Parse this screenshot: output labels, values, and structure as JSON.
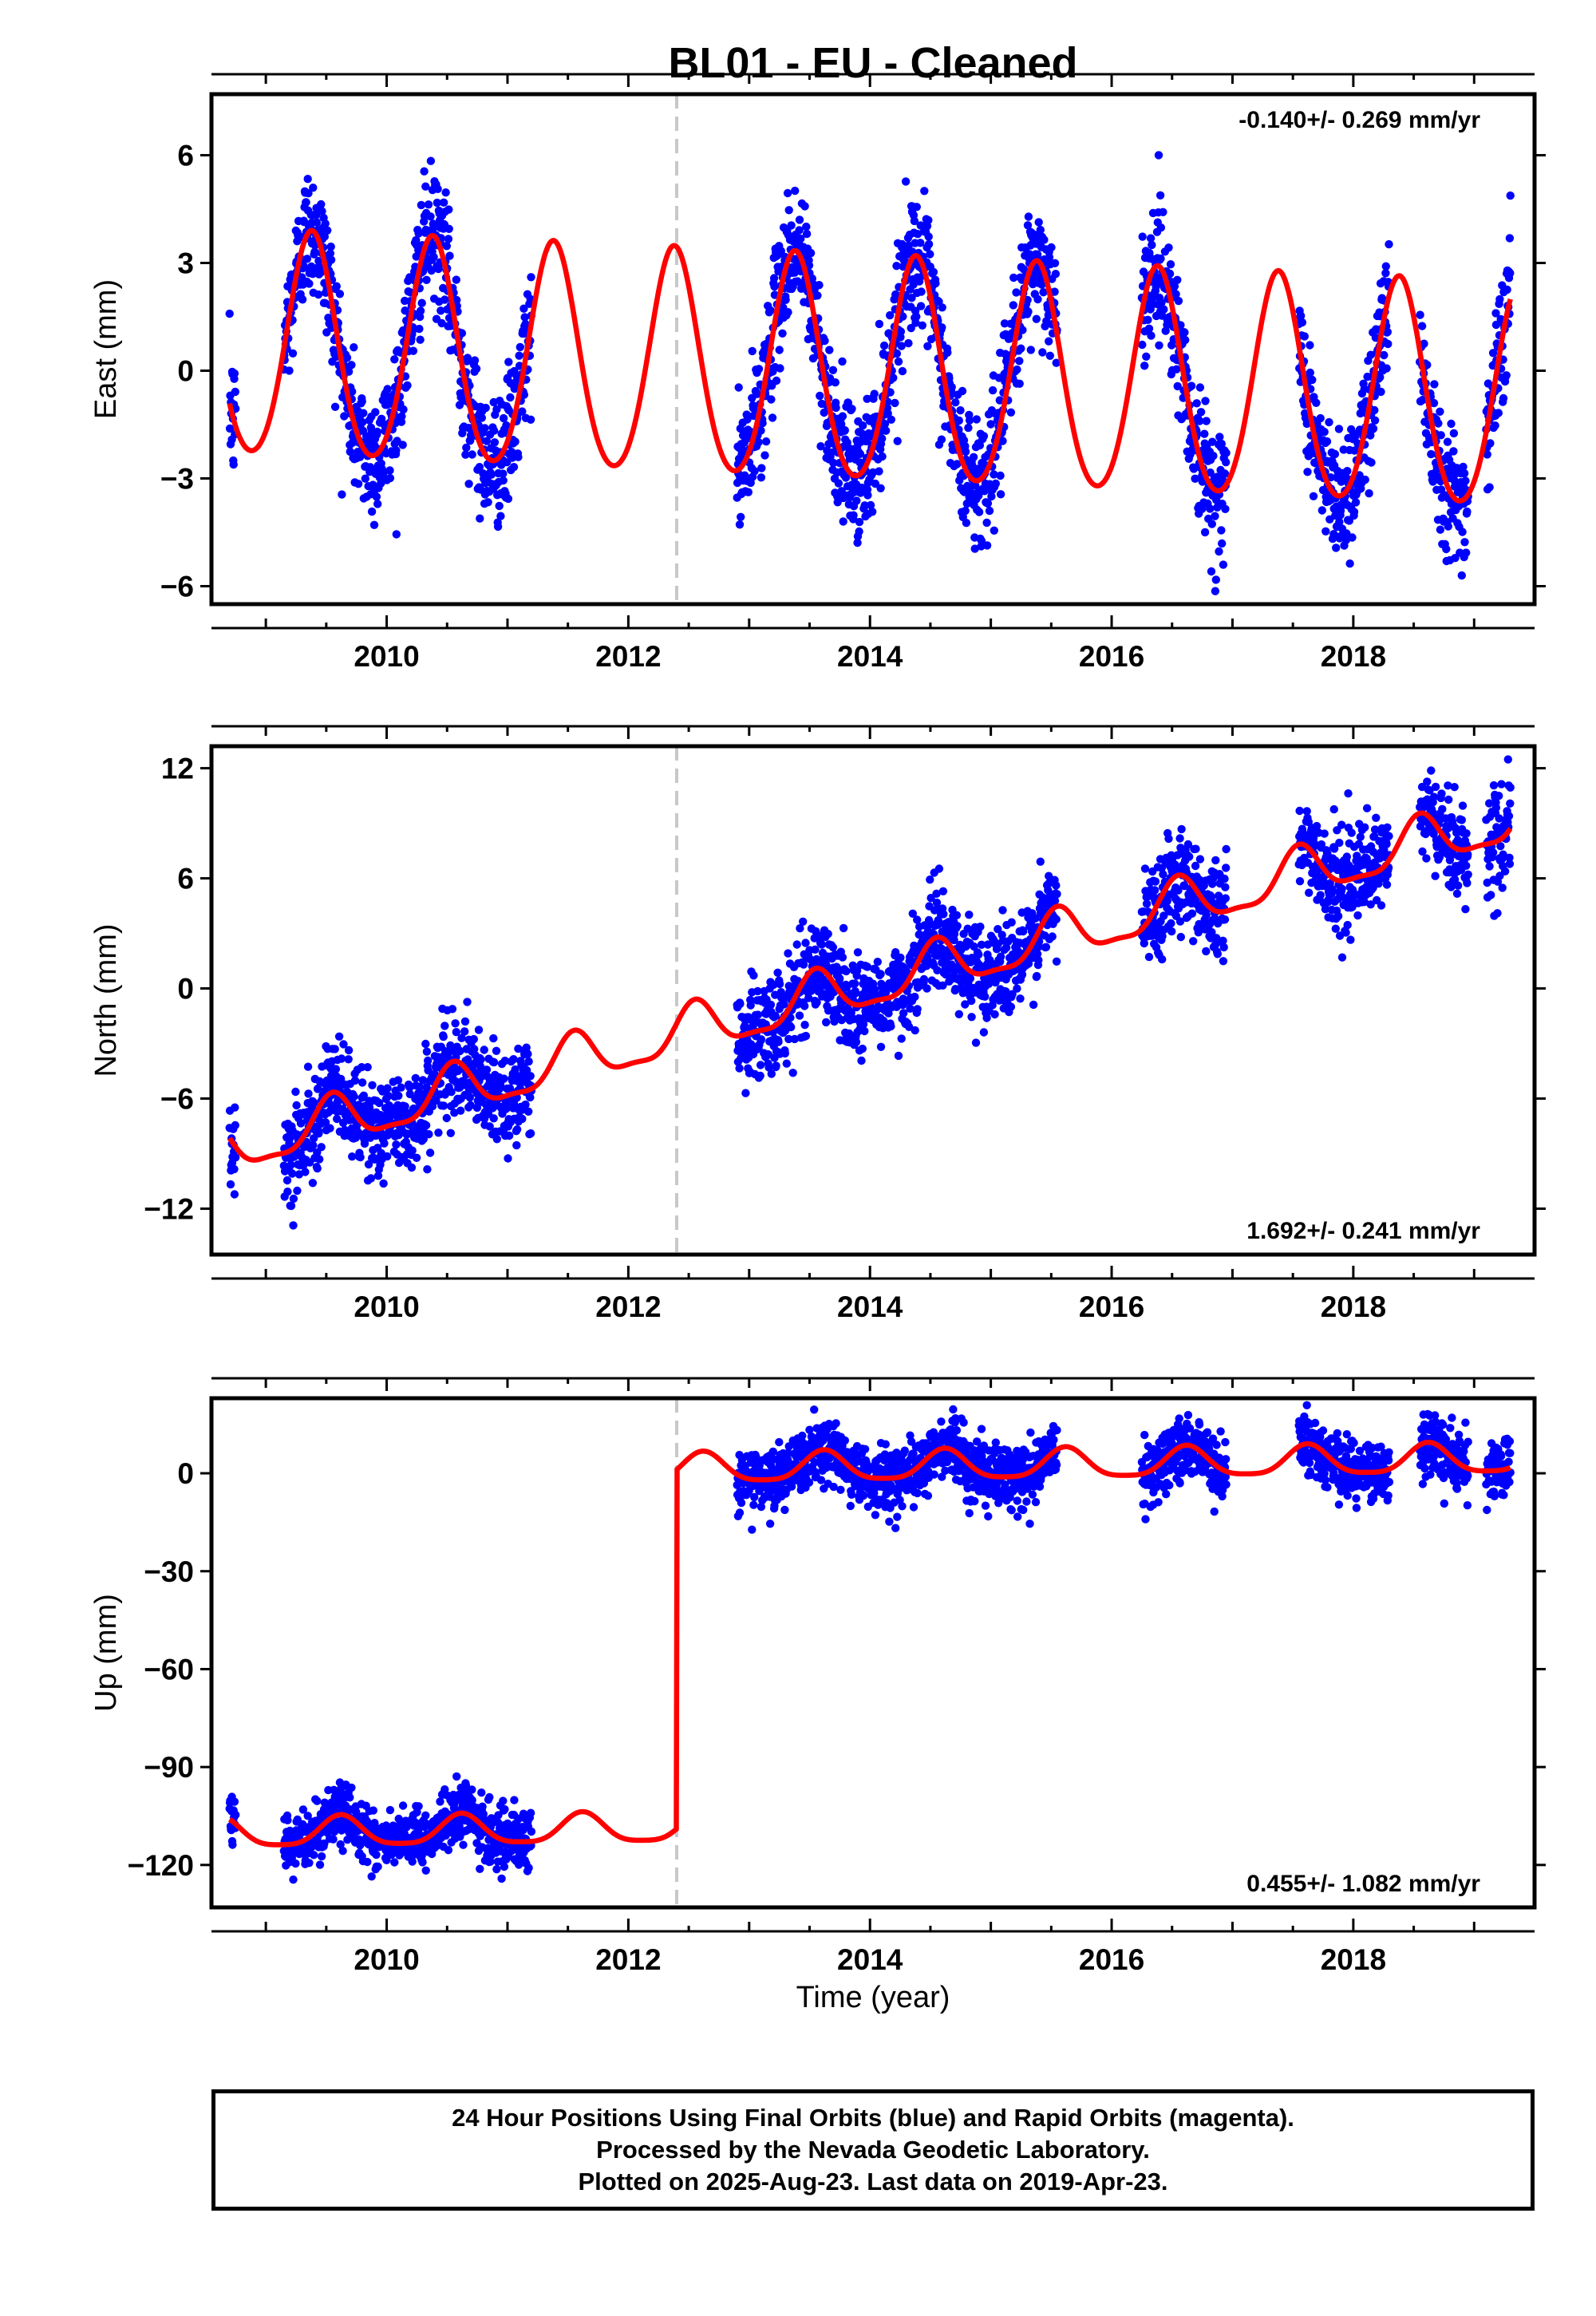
{
  "title": "BL01  - EU - Cleaned",
  "x_axis_title": "Time (year)",
  "footer": {
    "line1": "24 Hour Positions Using Final Orbits (blue) and Rapid Orbits (magenta).",
    "line2": "Processed by the Nevada Geodetic Laboratory.",
    "line3": "Plotted on 2025-Aug-23. Last data on 2019-Apr-23."
  },
  "colors": {
    "points": "#0000ff",
    "model": "#ff0000",
    "step_line": "#c8c8c8",
    "frame": "#000000"
  },
  "chart_data": [
    {
      "type": "scatter",
      "name": "east",
      "ylabel": "East (mm)",
      "rate_label": "-0.140+/- 0.269 mm/yr",
      "rate_position": "top-right",
      "xlim": [
        2008.55,
        2019.5
      ],
      "ylim": [
        -6.5,
        7.7
      ],
      "xticks": [
        2010,
        2012,
        2014,
        2016,
        2018
      ],
      "yticks": [
        6,
        3,
        0,
        -3,
        -6
      ],
      "ytick_labels": [
        "6",
        "3",
        "0",
        "−3",
        "−6"
      ],
      "step_epoch": 2012.4,
      "data_segments": [
        [
          2008.7,
          2008.75
        ],
        [
          2009.15,
          2011.2
        ],
        [
          2012.9,
          2015.55
        ],
        [
          2016.25,
          2016.95
        ],
        [
          2017.55,
          2018.3
        ],
        [
          2018.55,
          2018.95
        ],
        [
          2019.1,
          2019.3
        ]
      ],
      "model": {
        "x_start": 2008.7,
        "x_end": 2019.3,
        "offset": 0.6,
        "rate": -0.14,
        "annual_amplitude": 3.1,
        "annual_phase_peak": 2009.38,
        "semiannual_amplitude": 0.3,
        "step": 0.0
      },
      "noise_sigma": 0.9
    },
    {
      "type": "scatter",
      "name": "north",
      "ylabel": "North (mm)",
      "rate_label": "1.692+/- 0.241 mm/yr",
      "rate_position": "bottom-right",
      "xlim": [
        2008.55,
        2019.5
      ],
      "ylim": [
        -14.5,
        13.2
      ],
      "xticks": [
        2010,
        2012,
        2014,
        2016,
        2018
      ],
      "yticks": [
        12,
        6,
        0,
        -6,
        -12
      ],
      "ytick_labels": [
        "12",
        "6",
        "0",
        "−6",
        "−12"
      ],
      "step_epoch": 2012.4,
      "data_segments": [
        [
          2008.7,
          2008.75
        ],
        [
          2009.15,
          2011.2
        ],
        [
          2012.9,
          2015.55
        ],
        [
          2016.25,
          2016.95
        ],
        [
          2017.55,
          2018.3
        ],
        [
          2018.55,
          2018.95
        ],
        [
          2019.1,
          2019.3
        ]
      ],
      "model": {
        "x_start": 2008.7,
        "x_end": 2019.3,
        "offset": -8.8,
        "rate": 1.69,
        "annual_amplitude": 1.3,
        "annual_phase_peak": 2009.55,
        "semiannual_amplitude": 0.4,
        "step": 0.0
      },
      "noise_sigma": 1.3
    },
    {
      "type": "scatter",
      "name": "up",
      "ylabel": "Up (mm)",
      "rate_label": "0.455+/- 1.082 mm/yr",
      "rate_position": "bottom-right",
      "xlim": [
        2008.55,
        2019.5
      ],
      "ylim": [
        -133,
        23
      ],
      "xticks": [
        2010,
        2012,
        2014,
        2016,
        2018
      ],
      "yticks": [
        0,
        -30,
        -60,
        -90,
        -120
      ],
      "ytick_labels": [
        "0",
        "−30",
        "−60",
        "−90",
        "−120"
      ],
      "step_epoch": 2012.4,
      "data_segments": [
        [
          2008.7,
          2008.75
        ],
        [
          2009.15,
          2011.2
        ],
        [
          2012.9,
          2015.55
        ],
        [
          2016.25,
          2016.95
        ],
        [
          2017.55,
          2018.3
        ],
        [
          2018.55,
          2018.95
        ],
        [
          2019.1,
          2019.3
        ]
      ],
      "model": {
        "x_start": 2008.7,
        "x_end": 2019.3,
        "offset": -110.5,
        "rate": 0.455,
        "annual_amplitude": 4.5,
        "annual_phase_peak": 2009.62,
        "semiannual_amplitude": 1.0,
        "step": 110.0
      },
      "noise_sigma": 4.5
    }
  ]
}
